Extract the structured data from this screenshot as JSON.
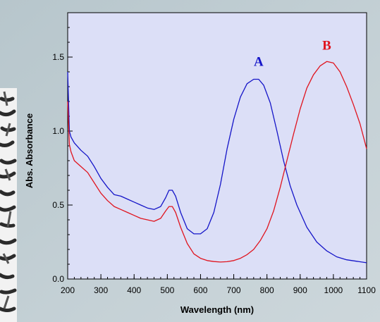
{
  "colors": {
    "background": "#c3cfd4",
    "plot_background": "#dcdff7",
    "series_a": "#1515c8",
    "series_b": "#e0141e"
  },
  "chart_data": {
    "type": "line",
    "xlabel": "Wavelength (nm)",
    "ylabel": "Abs. Absorbance",
    "xlim": [
      200,
      1100
    ],
    "ylim": [
      0.0,
      1.8
    ],
    "x_ticks": [
      200,
      300,
      400,
      500,
      600,
      700,
      800,
      900,
      1000,
      1100
    ],
    "y_ticks": [
      0.0,
      0.5,
      1.0,
      1.5
    ],
    "y_tick_labels": [
      "0.0",
      "0.5",
      "1.0",
      "1.5"
    ],
    "grid": false,
    "series": [
      {
        "name": "A",
        "color": "#1515c8",
        "x": [
          200,
          205,
          210,
          220,
          240,
          260,
          280,
          300,
          320,
          340,
          360,
          380,
          400,
          420,
          440,
          460,
          480,
          495,
          505,
          515,
          525,
          540,
          560,
          580,
          600,
          620,
          640,
          660,
          680,
          700,
          720,
          740,
          760,
          775,
          790,
          810,
          830,
          850,
          870,
          890,
          920,
          950,
          980,
          1010,
          1040,
          1070,
          1100
        ],
        "y": [
          1.4,
          1.0,
          0.96,
          0.92,
          0.87,
          0.83,
          0.76,
          0.68,
          0.62,
          0.57,
          0.56,
          0.54,
          0.52,
          0.5,
          0.48,
          0.47,
          0.49,
          0.55,
          0.6,
          0.6,
          0.56,
          0.45,
          0.34,
          0.305,
          0.305,
          0.34,
          0.45,
          0.64,
          0.88,
          1.08,
          1.23,
          1.32,
          1.35,
          1.35,
          1.31,
          1.19,
          1.0,
          0.8,
          0.63,
          0.5,
          0.35,
          0.25,
          0.19,
          0.15,
          0.13,
          0.12,
          0.11
        ]
      },
      {
        "name": "B",
        "color": "#e0141e",
        "x": [
          200,
          205,
          210,
          220,
          240,
          260,
          280,
          300,
          320,
          340,
          360,
          380,
          400,
          420,
          440,
          460,
          480,
          495,
          505,
          515,
          525,
          540,
          560,
          580,
          600,
          620,
          640,
          660,
          680,
          700,
          720,
          740,
          760,
          780,
          800,
          820,
          840,
          860,
          880,
          900,
          920,
          940,
          960,
          980,
          1000,
          1020,
          1040,
          1060,
          1080,
          1100
        ],
        "y": [
          1.2,
          0.91,
          0.86,
          0.8,
          0.76,
          0.72,
          0.65,
          0.58,
          0.53,
          0.49,
          0.47,
          0.45,
          0.43,
          0.41,
          0.4,
          0.39,
          0.41,
          0.46,
          0.49,
          0.49,
          0.45,
          0.35,
          0.24,
          0.17,
          0.14,
          0.125,
          0.118,
          0.115,
          0.117,
          0.125,
          0.14,
          0.165,
          0.2,
          0.26,
          0.34,
          0.46,
          0.62,
          0.8,
          0.98,
          1.15,
          1.29,
          1.38,
          1.44,
          1.47,
          1.46,
          1.4,
          1.3,
          1.18,
          1.05,
          0.88
        ]
      }
    ],
    "annotations": [
      {
        "text": "A",
        "color": "#1515c8",
        "x": 775,
        "y": 1.44
      },
      {
        "text": "B",
        "color": "#e0141e",
        "x": 980,
        "y": 1.55
      }
    ]
  }
}
